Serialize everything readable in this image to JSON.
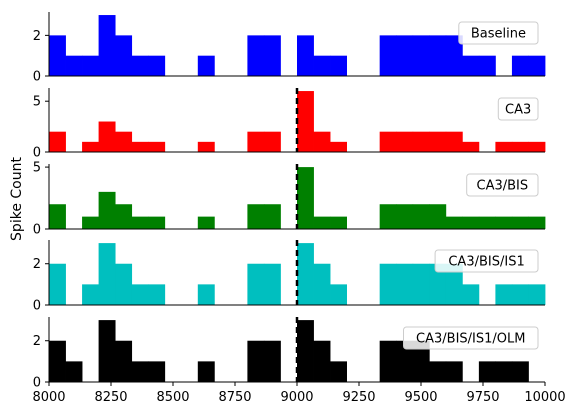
{
  "chart_data": {
    "type": "bar",
    "ylabel": "Spike Count",
    "xlim": [
      8000,
      10000
    ],
    "bin_width": 66.67,
    "bin_starts": [
      8000,
      8066.67,
      8133.33,
      8200,
      8266.67,
      8333.33,
      8400,
      8466.67,
      8533.33,
      8600,
      8666.67,
      8733.33,
      8800,
      8866.67,
      8933.33,
      9000,
      9066.67,
      9133.33,
      9200,
      9266.67,
      9333.33,
      9400,
      9466.67,
      9533.33,
      9600,
      9666.67,
      9733.33,
      9800,
      9866.67,
      9933.33
    ],
    "x_ticks": [
      8000,
      8250,
      8500,
      8750,
      9000,
      9250,
      9500,
      9750,
      10000
    ],
    "vline_x": 9000,
    "series": [
      {
        "name": "Baseline",
        "color": "#0000ff",
        "ylim": [
          0,
          3.15
        ],
        "yticks": [
          0,
          2
        ],
        "show_vline": false,
        "values": [
          2,
          1,
          1,
          3,
          2,
          1,
          1,
          0,
          0,
          1,
          0,
          0,
          2,
          2,
          0,
          2,
          1,
          1,
          0,
          0,
          2,
          2,
          2,
          2,
          2,
          1,
          1,
          0,
          1,
          1
        ]
      },
      {
        "name": "CA3",
        "color": "#ff0000",
        "ylim": [
          0,
          6.3
        ],
        "yticks": [
          0,
          5
        ],
        "show_vline": true,
        "values": [
          2,
          0,
          1,
          3,
          2,
          1,
          1,
          0,
          0,
          1,
          0,
          0,
          2,
          2,
          0,
          6,
          2,
          1,
          0,
          0,
          2,
          2,
          2,
          2,
          2,
          1,
          0,
          1,
          1,
          1
        ]
      },
      {
        "name": "CA3/BIS",
        "color": "#008000",
        "ylim": [
          0,
          5.25
        ],
        "yticks": [
          0,
          5
        ],
        "show_vline": true,
        "values": [
          2,
          0,
          1,
          3,
          2,
          1,
          1,
          0,
          0,
          1,
          0,
          0,
          2,
          2,
          0,
          5,
          1,
          1,
          0,
          0,
          2,
          2,
          2,
          2,
          1,
          1,
          1,
          1,
          1,
          1
        ]
      },
      {
        "name": "CA3/BIS/IS1",
        "color": "#00bfbf",
        "ylim": [
          0,
          3.15
        ],
        "yticks": [
          0,
          2
        ],
        "show_vline": true,
        "values": [
          2,
          0,
          1,
          3,
          2,
          1,
          1,
          0,
          0,
          1,
          0,
          0,
          2,
          2,
          0,
          3,
          2,
          1,
          0,
          0,
          2,
          2,
          2,
          2,
          2,
          1,
          0,
          1,
          1,
          1
        ]
      },
      {
        "name": "CA3/BIS/IS1/OLM",
        "color": "#000000",
        "ylim": [
          0,
          3.15
        ],
        "yticks": [
          0,
          2
        ],
        "show_vline": true,
        "values": [
          2,
          1,
          0,
          3,
          2,
          1,
          1,
          0,
          0,
          1,
          0,
          0,
          2,
          2,
          0,
          3,
          2,
          1,
          0,
          0,
          2,
          2,
          2,
          1,
          1,
          0,
          1,
          1,
          1,
          0
        ]
      }
    ]
  }
}
